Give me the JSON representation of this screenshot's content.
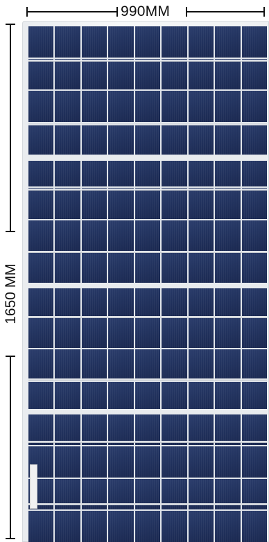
{
  "dimensions": {
    "width_label": "990MM",
    "height_label": "1650 MM"
  },
  "panel": {
    "description_icon": "solar-panel",
    "columns": 9,
    "rows": 16,
    "frame_color": "#eef0f2",
    "cell_color": "#22335f"
  }
}
